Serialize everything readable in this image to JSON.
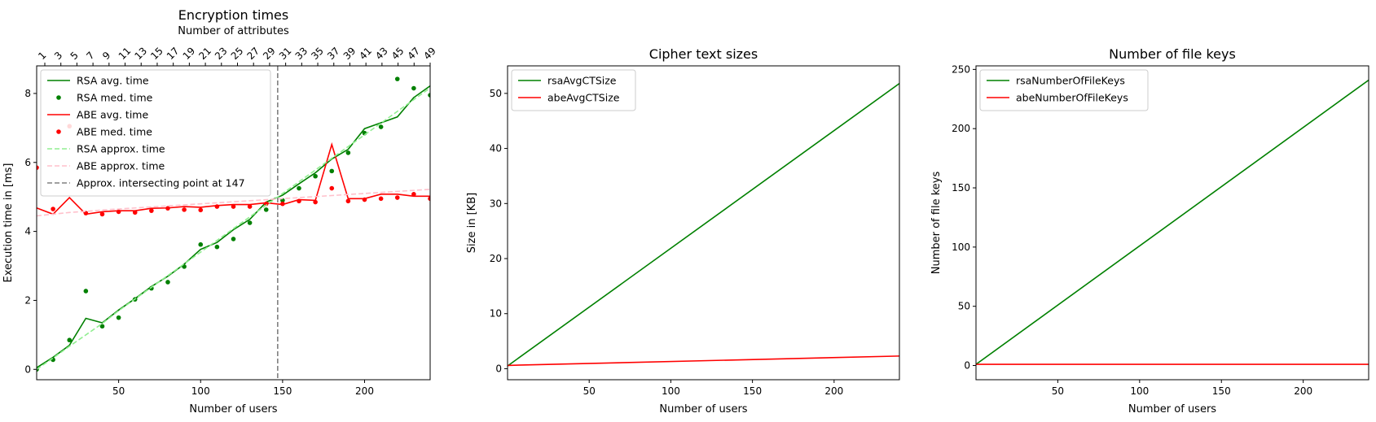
{
  "chart_data": [
    {
      "type": "line",
      "title": "Encryption times",
      "top_axis_label": "Number of attributes",
      "xlabel": "Number of users",
      "ylabel": "Execution time in [ms]",
      "xlim": [
        0,
        240
      ],
      "ylim": [
        -0.3,
        8.8
      ],
      "x_ticks": [
        50,
        100,
        150,
        200
      ],
      "y_ticks": [
        0,
        2,
        4,
        6,
        8
      ],
      "top_ticks": [
        1,
        3,
        5,
        7,
        9,
        11,
        13,
        15,
        17,
        19,
        21,
        23,
        25,
        27,
        29,
        31,
        33,
        35,
        37,
        39,
        41,
        43,
        45,
        47,
        49
      ],
      "x": [
        0,
        10,
        20,
        30,
        40,
        50,
        60,
        70,
        80,
        90,
        100,
        110,
        120,
        130,
        140,
        150,
        160,
        170,
        180,
        190,
        200,
        210,
        220,
        230,
        240
      ],
      "legend_position": "upper left",
      "grid": false,
      "series": [
        {
          "name": "RSA avg. time",
          "style": "solid",
          "color": "#008000",
          "values": [
            0.05,
            0.35,
            0.7,
            1.48,
            1.35,
            1.72,
            2.05,
            2.4,
            2.7,
            3.05,
            3.48,
            3.68,
            4.05,
            4.35,
            4.85,
            5.05,
            5.38,
            5.7,
            6.1,
            6.38,
            6.98,
            7.15,
            7.32,
            7.88,
            8.22
          ]
        },
        {
          "name": "RSA med. time",
          "style": "dots",
          "color": "#008000",
          "values": [
            0.0,
            0.28,
            0.85,
            2.27,
            1.25,
            1.5,
            2.03,
            2.35,
            2.53,
            2.98,
            3.62,
            3.55,
            3.78,
            4.25,
            4.63,
            4.9,
            5.25,
            5.6,
            5.75,
            6.28,
            6.85,
            7.03,
            8.42,
            8.15,
            7.95
          ]
        },
        {
          "name": "ABE avg. time",
          "style": "solid",
          "color": "#ff0000",
          "values": [
            4.68,
            4.5,
            4.98,
            4.5,
            4.57,
            4.6,
            4.6,
            4.67,
            4.68,
            4.72,
            4.7,
            4.75,
            4.78,
            4.78,
            4.83,
            4.78,
            4.92,
            4.9,
            6.52,
            4.95,
            4.95,
            5.08,
            5.08,
            5.02,
            5.02
          ]
        },
        {
          "name": "ABE med. time",
          "style": "dots",
          "color": "#ff0000",
          "values": [
            5.85,
            4.65,
            7.05,
            4.53,
            4.5,
            4.57,
            4.55,
            4.6,
            4.67,
            4.63,
            4.62,
            4.72,
            4.72,
            4.72,
            4.8,
            4.8,
            4.88,
            4.85,
            5.25,
            4.88,
            4.92,
            4.95,
            4.98,
            5.08,
            4.95
          ]
        },
        {
          "name": "RSA approx. time",
          "style": "dashed",
          "color": "#90ee90",
          "values": [
            0.0,
            0.33,
            0.67,
            1.0,
            1.33,
            1.7,
            2.04,
            2.38,
            2.72,
            3.06,
            3.4,
            3.74,
            4.08,
            4.42,
            4.76,
            5.1,
            5.44,
            5.78,
            6.12,
            6.46,
            6.8,
            7.14,
            7.48,
            7.82,
            8.16
          ]
        },
        {
          "name": "ABE approx. time",
          "style": "dashed",
          "color": "#ffc0cb",
          "values": [
            4.45,
            4.5,
            4.55,
            4.58,
            4.62,
            4.65,
            4.68,
            4.71,
            4.74,
            4.77,
            4.8,
            4.83,
            4.86,
            4.89,
            4.92,
            4.95,
            4.98,
            5.01,
            5.04,
            5.07,
            5.1,
            5.13,
            5.16,
            5.19,
            5.22
          ]
        }
      ],
      "vline": {
        "name": "Approx. intersecting point at 147",
        "x": 147,
        "style": "dashed",
        "color": "#808080"
      }
    },
    {
      "type": "line",
      "title": "Cipher text sizes",
      "xlabel": "Number of users",
      "ylabel": "Size in [KB]",
      "xlim": [
        0,
        240
      ],
      "ylim": [
        -2,
        55
      ],
      "x_ticks": [
        50,
        100,
        150,
        200
      ],
      "y_ticks": [
        0,
        10,
        20,
        30,
        40,
        50
      ],
      "x": [
        0,
        240
      ],
      "legend_position": "upper left",
      "grid": false,
      "series": [
        {
          "name": "rsaAvgCTSize",
          "style": "solid",
          "color": "#008000",
          "values": [
            0.5,
            51.8
          ]
        },
        {
          "name": "abeAvgCTSize",
          "style": "solid",
          "color": "#ff0000",
          "values": [
            0.6,
            2.3
          ]
        }
      ]
    },
    {
      "type": "line",
      "title": "Number of file keys",
      "xlabel": "Number of users",
      "ylabel": "Number of file keys",
      "xlim": [
        0,
        240
      ],
      "ylim": [
        -12,
        253
      ],
      "x_ticks": [
        50,
        100,
        150,
        200
      ],
      "y_ticks": [
        0,
        50,
        100,
        150,
        200,
        250
      ],
      "x": [
        0,
        240
      ],
      "legend_position": "upper left",
      "grid": false,
      "series": [
        {
          "name": "rsaNumberOfFileKeys",
          "style": "solid",
          "color": "#008000",
          "values": [
            1,
            241
          ]
        },
        {
          "name": "abeNumberOfFileKeys",
          "style": "solid",
          "color": "#ff0000",
          "values": [
            1,
            1
          ]
        }
      ]
    }
  ]
}
